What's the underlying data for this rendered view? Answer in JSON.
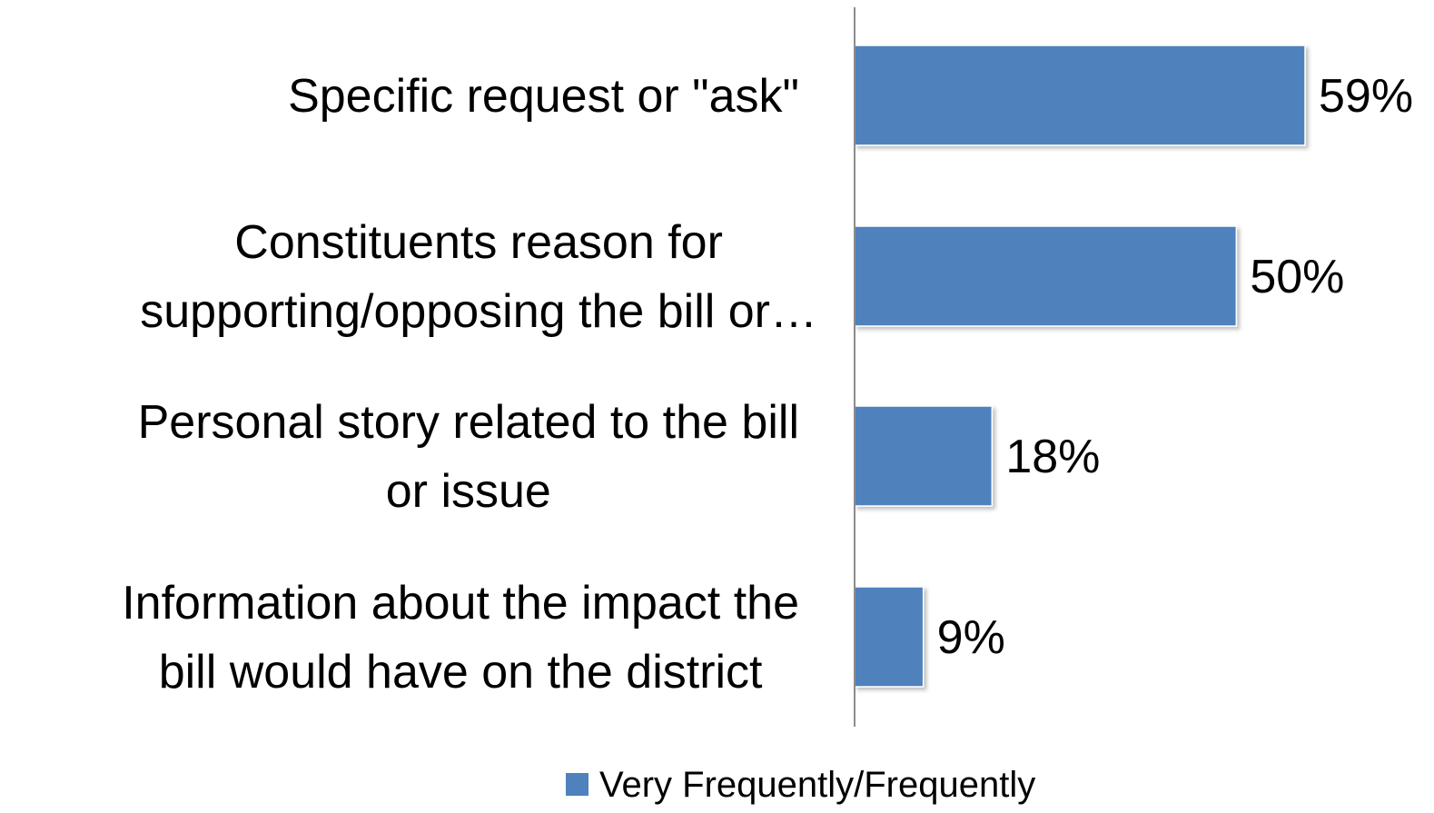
{
  "chart_data": {
    "type": "bar",
    "orientation": "horizontal",
    "categories": [
      [
        "Specific request or \"ask\""
      ],
      [
        "Constituents reason for",
        "supporting/opposing the bill or…"
      ],
      [
        "Personal story related to the bill",
        "or issue"
      ],
      [
        "Information about the impact the",
        "bill would have on the district"
      ]
    ],
    "series": [
      {
        "name": "Very Frequently/Frequently",
        "values": [
          59,
          50,
          18,
          9
        ],
        "labels": [
          "59%",
          "50%",
          "18%",
          "9%"
        ],
        "color": "#4f81bd"
      }
    ],
    "xlim": [
      0,
      75
    ],
    "grid": false,
    "legend": "bottom",
    "title": "",
    "xlabel": "",
    "ylabel": ""
  }
}
